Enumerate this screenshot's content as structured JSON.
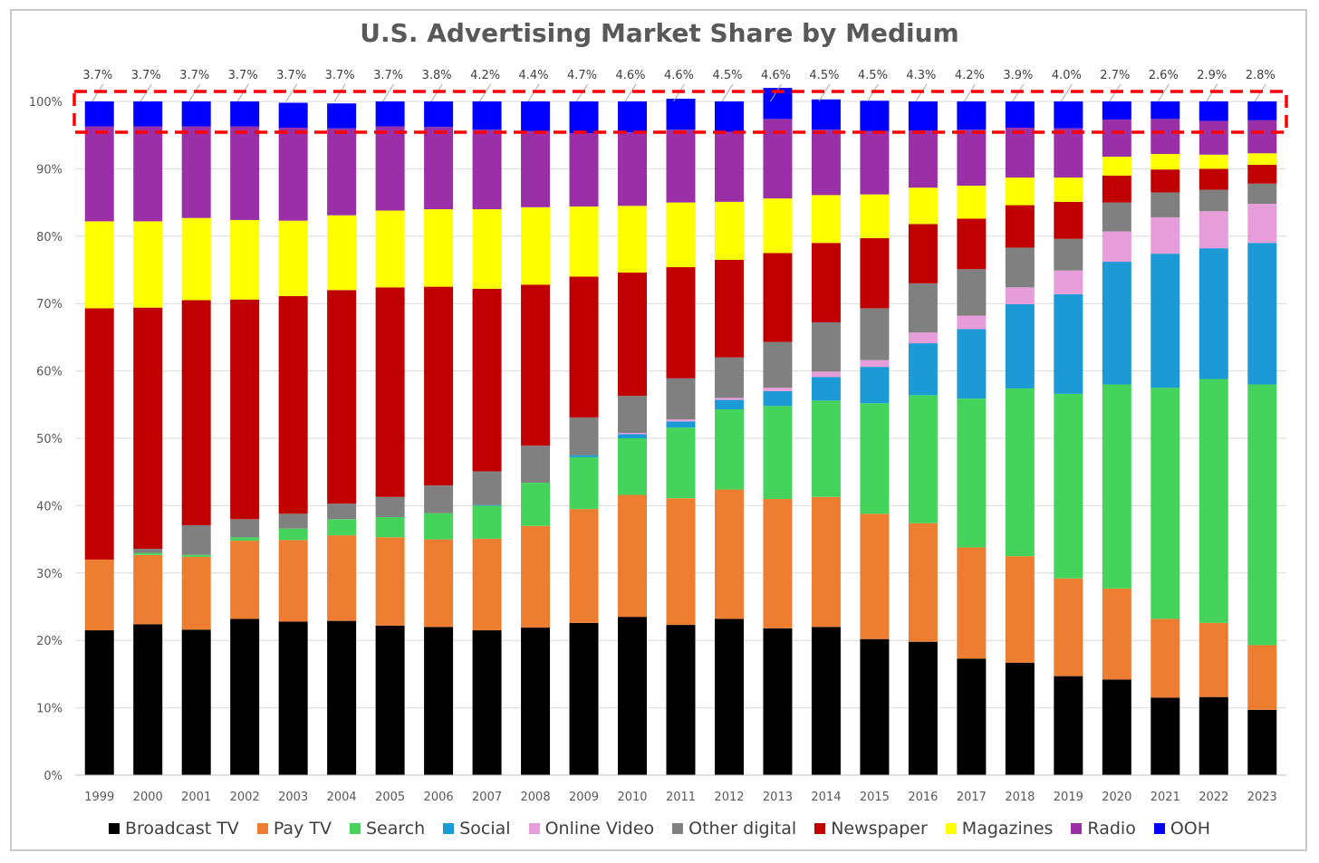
{
  "chart_data": {
    "type": "bar",
    "stacked": true,
    "title": "U.S. Advertising Market Share by Medium",
    "xlabel": "",
    "ylabel": "",
    "ylim": [
      0,
      100
    ],
    "y_ticks": [
      "0%",
      "10%",
      "20%",
      "30%",
      "40%",
      "50%",
      "60%",
      "70%",
      "80%",
      "90%",
      "100%"
    ],
    "grid": true,
    "legend_position": "bottom",
    "categories": [
      "1999",
      "2000",
      "2001",
      "2002",
      "2003",
      "2004",
      "2005",
      "2006",
      "2007",
      "2008",
      "2009",
      "2010",
      "2011",
      "2012",
      "2013",
      "2014",
      "2015",
      "2016",
      "2017",
      "2018",
      "2019",
      "2020",
      "2021",
      "2022",
      "2023"
    ],
    "series": [
      {
        "name": "Broadcast TV",
        "color": "#000000",
        "values": [
          21.5,
          22.4,
          21.6,
          23.2,
          22.8,
          22.9,
          22.2,
          22.0,
          21.5,
          21.9,
          22.6,
          23.5,
          22.3,
          23.2,
          21.8,
          22.0,
          20.2,
          19.8,
          17.3,
          16.7,
          14.7,
          14.2,
          11.5,
          11.6,
          9.7
        ]
      },
      {
        "name": "Pay TV",
        "color": "#ed7d31",
        "values": [
          10.5,
          10.3,
          10.8,
          11.6,
          12.1,
          12.7,
          13.1,
          13.0,
          13.6,
          15.1,
          16.9,
          18.1,
          18.8,
          19.2,
          19.2,
          19.3,
          18.6,
          17.6,
          16.5,
          15.8,
          14.5,
          13.5,
          11.7,
          11.0,
          9.6
        ]
      },
      {
        "name": "Search",
        "color": "#44d45c",
        "values": [
          0,
          0.3,
          0.3,
          0.5,
          1.7,
          2.4,
          3.0,
          3.9,
          4.9,
          6.4,
          7.7,
          8.4,
          10.5,
          11.9,
          13.8,
          14.3,
          16.4,
          19.0,
          22.1,
          24.9,
          27.4,
          30.3,
          34.3,
          36.2,
          38.7
        ]
      },
      {
        "name": "Social",
        "color": "#1b9ad6",
        "values": [
          0,
          0,
          0,
          0,
          0,
          0,
          0,
          0,
          0.1,
          0,
          0.3,
          0.6,
          0.9,
          1.4,
          2.2,
          3.5,
          5.4,
          7.7,
          10.3,
          12.5,
          14.8,
          18.2,
          19.9,
          19.4,
          21.0
        ]
      },
      {
        "name": "Online Video",
        "color": "#e89ddb",
        "values": [
          0,
          0,
          0,
          0,
          0,
          0,
          0,
          0,
          0,
          0,
          0,
          0.2,
          0.3,
          0.3,
          0.5,
          0.8,
          1.0,
          1.6,
          2.0,
          2.5,
          3.5,
          4.5,
          5.4,
          5.5,
          5.8
        ]
      },
      {
        "name": "Other digital",
        "color": "#808080",
        "values": [
          0,
          0.6,
          4.4,
          2.7,
          2.2,
          2.3,
          3.0,
          4.1,
          5.0,
          5.5,
          5.6,
          5.5,
          6.1,
          6.0,
          6.8,
          7.3,
          7.7,
          7.3,
          6.9,
          5.9,
          4.7,
          4.3,
          3.7,
          3.2,
          3.0
        ]
      },
      {
        "name": "Newspaper",
        "color": "#c00000",
        "values": [
          37.3,
          35.8,
          33.4,
          32.6,
          32.3,
          31.7,
          31.1,
          29.5,
          27.1,
          23.9,
          20.9,
          18.3,
          16.5,
          14.5,
          13.2,
          11.8,
          10.4,
          8.8,
          7.5,
          6.3,
          5.5,
          4.0,
          3.4,
          3.1,
          2.8
        ]
      },
      {
        "name": "Magazines",
        "color": "#ffff00",
        "values": [
          12.9,
          12.8,
          12.2,
          11.8,
          11.2,
          11.1,
          11.4,
          11.5,
          11.8,
          11.5,
          10.4,
          9.9,
          9.6,
          8.6,
          8.1,
          7.1,
          6.5,
          5.4,
          4.9,
          4.1,
          3.6,
          2.8,
          2.3,
          2.1,
          1.7
        ]
      },
      {
        "name": "Radio",
        "color": "#9b2fa8",
        "values": [
          14.1,
          14.1,
          13.6,
          13.9,
          13.8,
          12.9,
          12.5,
          12.2,
          11.8,
          11.3,
          10.9,
          10.9,
          10.8,
          10.4,
          11.8,
          9.7,
          9.4,
          8.5,
          8.3,
          7.4,
          7.3,
          5.5,
          5.2,
          5.0,
          4.9
        ]
      },
      {
        "name": "OOH",
        "color": "#0000ff",
        "values": [
          3.7,
          3.7,
          3.7,
          3.7,
          3.7,
          3.7,
          3.7,
          3.8,
          4.2,
          4.4,
          4.7,
          4.6,
          4.6,
          4.5,
          4.6,
          4.5,
          4.5,
          4.3,
          4.2,
          3.9,
          4.0,
          2.7,
          2.6,
          2.9,
          2.8
        ]
      }
    ],
    "annotations": {
      "ooh_labels": [
        "3.7%",
        "3.7%",
        "3.7%",
        "3.7%",
        "3.7%",
        "3.7%",
        "3.7%",
        "3.8%",
        "4.2%",
        "4.4%",
        "4.7%",
        "4.6%",
        "4.6%",
        "4.5%",
        "4.6%",
        "4.5%",
        "4.5%",
        "4.3%",
        "4.2%",
        "3.9%",
        "4.0%",
        "2.7%",
        "2.6%",
        "2.9%",
        "2.8%"
      ],
      "highlight_box": {
        "color": "#ff0000",
        "style": "dashed",
        "target_series": "OOH"
      }
    }
  }
}
